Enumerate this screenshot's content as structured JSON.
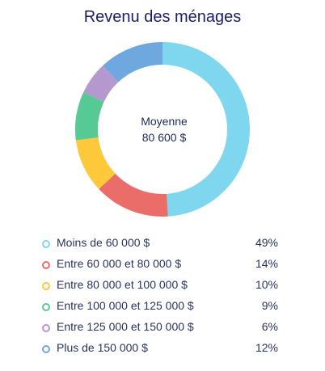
{
  "chart_data": {
    "type": "pie",
    "title": "Revenu des ménages",
    "center_label": {
      "line1": "Moyenne",
      "line2": "80 600 $"
    },
    "categories": [
      "Moins de 60 000 $",
      "Entre 60 000 et 80 000 $",
      "Entre 80 000 et 100 000 $",
      "Entre 100 000 et 125 000 $",
      "Entre 125 000 et 150 000 $",
      "Plus de 150 000 $"
    ],
    "values": [
      49,
      14,
      10,
      9,
      6,
      12
    ],
    "value_labels": [
      "49%",
      "14%",
      "10%",
      "9%",
      "6%",
      "12%"
    ],
    "colors": [
      "#7fd6ef",
      "#ea6d69",
      "#fdc93a",
      "#57c995",
      "#b598ce",
      "#6fa8df"
    ],
    "legend_position": "bottom"
  }
}
